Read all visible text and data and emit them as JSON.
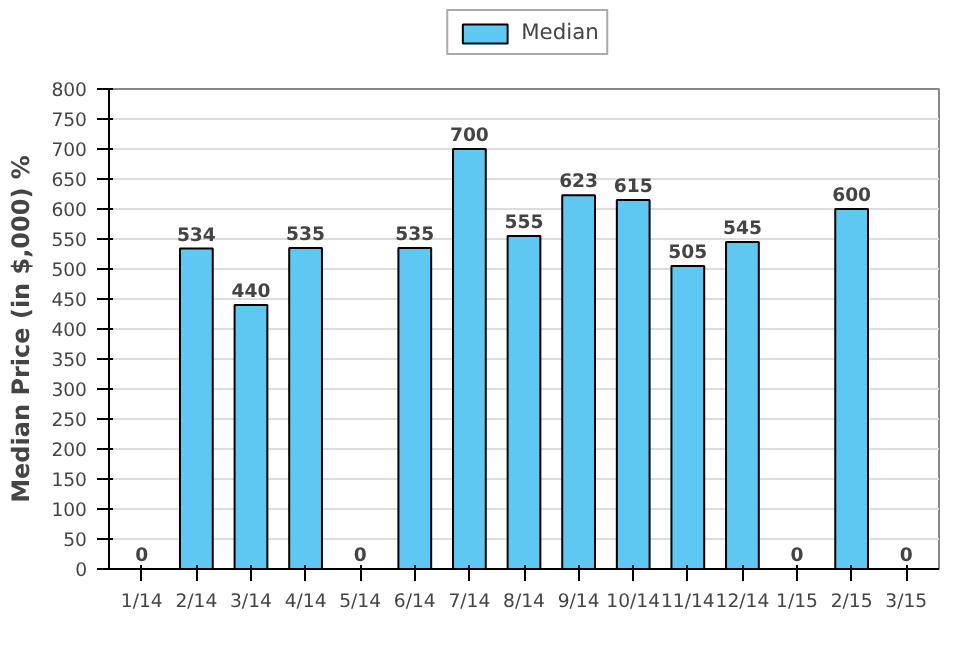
{
  "chart_data": {
    "type": "bar",
    "ylabel": "Median Price (in $,000) %",
    "categories": [
      "1/14",
      "2/14",
      "3/14",
      "4/14",
      "5/14",
      "6/14",
      "7/14",
      "8/14",
      "9/14",
      "10/14",
      "11/14",
      "12/14",
      "1/15",
      "2/15",
      "3/15"
    ],
    "series": [
      {
        "name": "Median",
        "color": "#5ec8f2",
        "values": [
          0,
          534,
          440,
          535,
          0,
          535,
          700,
          555,
          623,
          615,
          505,
          545,
          0,
          600,
          0
        ]
      }
    ],
    "ylim": [
      0,
      800
    ],
    "yticks": [
      0,
      50,
      100,
      150,
      200,
      250,
      300,
      350,
      400,
      450,
      500,
      550,
      600,
      650,
      700,
      750,
      800
    ],
    "data_labels": true,
    "grid": "y",
    "legend": "top"
  }
}
